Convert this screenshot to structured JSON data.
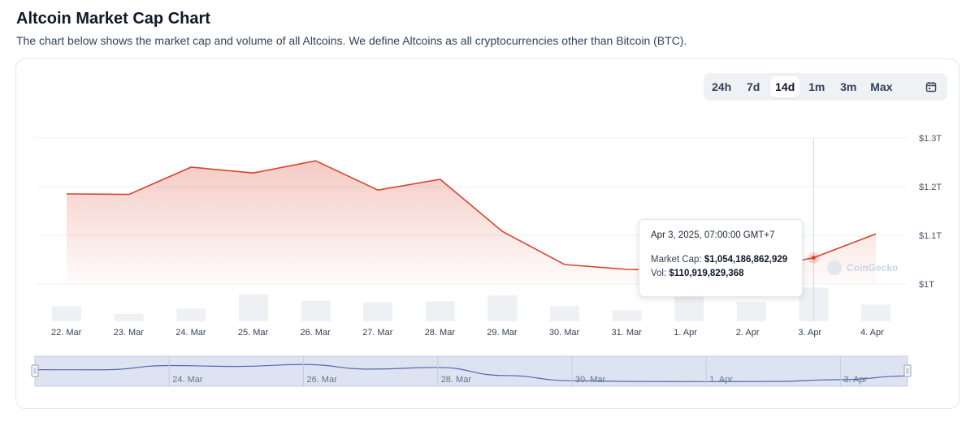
{
  "header": {
    "title": "Altcoin Market Cap Chart",
    "description": "The chart below shows the market cap and volume of all Altcoins. We define Altcoins as all cryptocurrencies other than Bitcoin (BTC)."
  },
  "range_selector": {
    "options": [
      "24h",
      "7d",
      "14d",
      "1m",
      "3m",
      "Max"
    ],
    "selected": "14d"
  },
  "tooltip": {
    "date": "Apr 3, 2025, 07:00:00 GMT+7",
    "market_cap_label": "Market Cap:",
    "market_cap_value": "$1,054,186,862,929",
    "vol_label": "Vol:",
    "vol_value": "$110,919,829,368"
  },
  "watermark": "CoinGecko",
  "colors": {
    "line": "#d9432d",
    "volume_bar": "#eef0f4",
    "navigator_fill": "#dde3f1",
    "navigator_line": "#5468ae"
  },
  "chart_data": {
    "type": "line",
    "x_axis_labels": [
      "22. Mar",
      "23. Mar",
      "24. Mar",
      "25. Mar",
      "26. Mar",
      "27. Mar",
      "28. Mar",
      "29. Mar",
      "30. Mar",
      "31. Mar",
      "1. Apr",
      "2. Apr",
      "3. Apr",
      "4. Apr"
    ],
    "y_tick_labels": [
      "$1.3T",
      "$1.2T",
      "$1.1T",
      "$1T"
    ],
    "y_ticks": [
      1.3,
      1.2,
      1.1,
      1.0
    ],
    "ylim": [
      1.0,
      1.3
    ],
    "grid": true,
    "series": [
      {
        "type": "line",
        "x": [
          "2025-03-22",
          "2025-03-23",
          "2025-03-24",
          "2025-03-25",
          "2025-03-26",
          "2025-03-27",
          "2025-03-28",
          "2025-03-29",
          "2025-03-30",
          "2025-03-31",
          "2025-04-01",
          "2025-04-02",
          "2025-04-03",
          "2025-04-04"
        ],
        "values": [
          1.185,
          1.184,
          1.24,
          1.228,
          1.253,
          1.193,
          1.215,
          1.108,
          1.04,
          1.03,
          1.028,
          1.03,
          1.054,
          1.103
        ]
      },
      {
        "type": "bar",
        "x": [
          "2025-03-22",
          "2025-03-23",
          "2025-03-24",
          "2025-03-25",
          "2025-03-26",
          "2025-03-27",
          "2025-03-28",
          "2025-03-29",
          "2025-03-30",
          "2025-03-31",
          "2025-04-01",
          "2025-04-02",
          "2025-04-03",
          "2025-04-04"
        ],
        "values": [
          0.45,
          0.22,
          0.37,
          0.79,
          0.6,
          0.56,
          0.59,
          0.76,
          0.45,
          0.32,
          0.78,
          0.57,
          0.99,
          0.49
        ]
      }
    ],
    "navigator": {
      "tick_labels": [
        "24. Mar",
        "26. Mar",
        "28. Mar",
        "30. Mar",
        "1. Apr",
        "3. Apr"
      ]
    }
  }
}
